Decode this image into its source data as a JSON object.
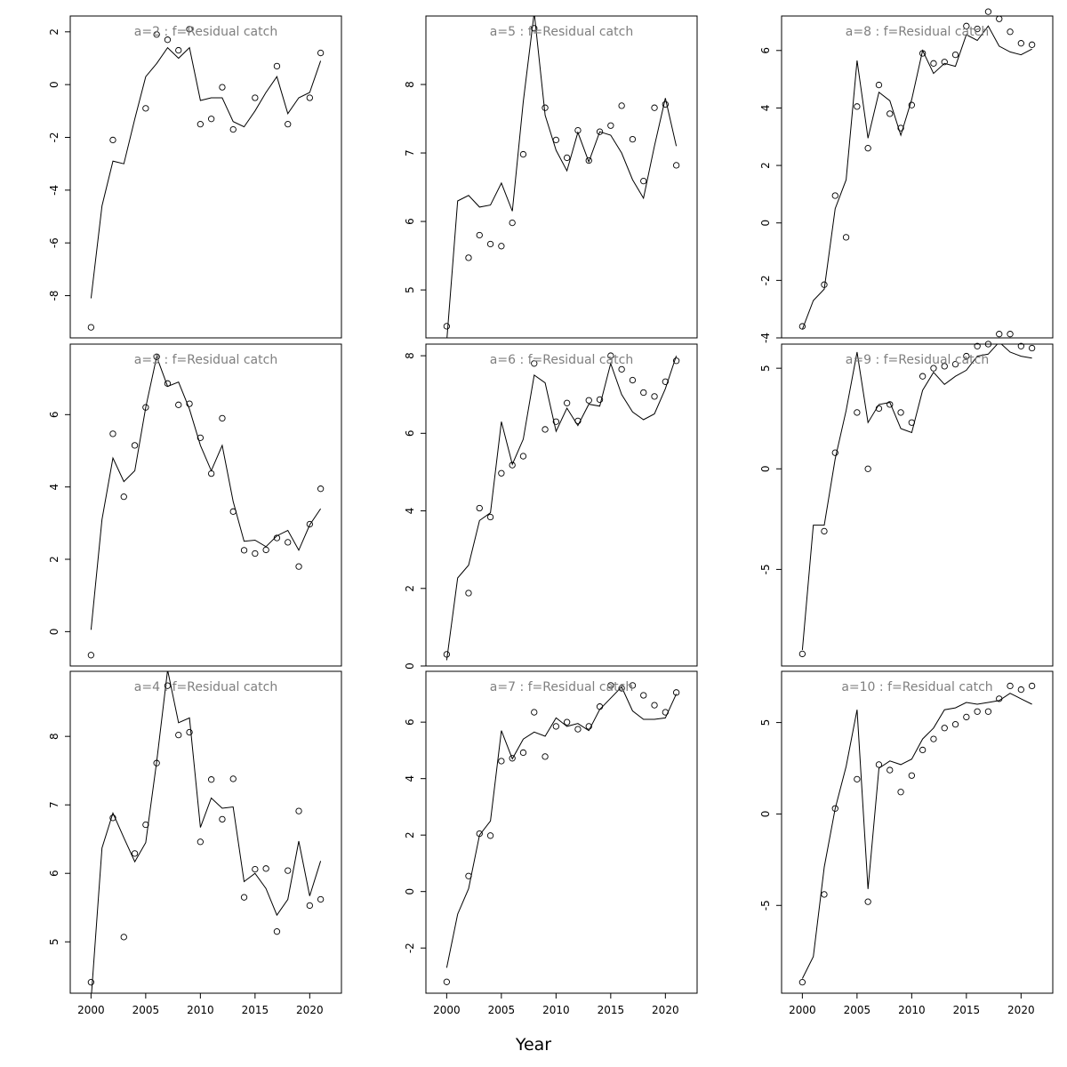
{
  "xlabel": "Year",
  "chart_data": [
    {
      "type": "line",
      "title": "a=2  :  f=Residual catch",
      "ylim": [
        -9.6,
        2.6
      ],
      "yticks": [
        -8,
        -6,
        -4,
        -2,
        0,
        2
      ],
      "ytick_labels": [
        "-8",
        "-6",
        "-4",
        "-2",
        "0",
        "2"
      ],
      "xticks": [
        2000,
        2005,
        2010,
        2015,
        2020
      ],
      "xtick_labels": [
        "2000",
        "2005",
        "2010",
        "2015",
        "2020"
      ],
      "show_xticks": false,
      "x": [
        2000,
        2001,
        2002,
        2003,
        2004,
        2005,
        2006,
        2007,
        2008,
        2009,
        2010,
        2011,
        2012,
        2013,
        2014,
        2015,
        2016,
        2017,
        2018,
        2019,
        2020,
        2021
      ],
      "observed": [
        -9.2,
        null,
        -2.1,
        null,
        null,
        -0.9,
        1.9,
        1.7,
        1.3,
        2.1,
        -1.5,
        -1.3,
        -0.1,
        -1.7,
        null,
        -0.5,
        null,
        0.7,
        -1.5,
        null,
        -0.5,
        1.2
      ],
      "fitted": [
        -8.1,
        -4.6,
        -2.9,
        -3.0,
        -1.3,
        0.3,
        0.8,
        1.4,
        1.0,
        1.4,
        -0.6,
        -0.5,
        -0.5,
        -1.4,
        -1.6,
        -1.0,
        -0.3,
        0.3,
        -1.1,
        -0.5,
        -0.3,
        0.9
      ]
    },
    {
      "type": "line",
      "title": "a=5  :  f=Residual catch",
      "ylim": [
        4.3,
        9.0
      ],
      "yticks": [
        5,
        6,
        7,
        8
      ],
      "ytick_labels": [
        "5",
        "6",
        "7",
        "8"
      ],
      "xticks": [
        2000,
        2005,
        2010,
        2015,
        2020
      ],
      "xtick_labels": [
        "2000",
        "2005",
        "2010",
        "2015",
        "2020"
      ],
      "show_xticks": false,
      "x": [
        2000,
        2001,
        2002,
        2003,
        2004,
        2005,
        2006,
        2007,
        2008,
        2009,
        2010,
        2011,
        2012,
        2013,
        2014,
        2015,
        2016,
        2017,
        2018,
        2019,
        2020,
        2021
      ],
      "observed": [
        4.47,
        null,
        5.47,
        5.8,
        5.67,
        5.64,
        5.98,
        6.98,
        8.82,
        7.66,
        7.19,
        6.93,
        7.33,
        6.89,
        7.31,
        7.4,
        7.69,
        7.2,
        6.59,
        7.66,
        7.71,
        6.82
      ],
      "fitted": [
        4.25,
        6.3,
        6.38,
        6.21,
        6.24,
        6.56,
        6.15,
        7.75,
        9.05,
        7.55,
        7.04,
        6.74,
        7.3,
        6.87,
        7.31,
        7.26,
        7.0,
        6.61,
        6.34,
        7.1,
        7.8,
        7.1
      ]
    },
    {
      "type": "line",
      "title": "a=8  :  f=Residual catch",
      "ylim": [
        -4.0,
        7.2
      ],
      "yticks": [
        -4,
        -2,
        0,
        2,
        4,
        6
      ],
      "ytick_labels": [
        "-4",
        "-2",
        "0",
        "2",
        "4",
        "6"
      ],
      "xticks": [
        2000,
        2005,
        2010,
        2015,
        2020
      ],
      "xtick_labels": [
        "2000",
        "2005",
        "2010",
        "2015",
        "2020"
      ],
      "show_xticks": false,
      "x": [
        2000,
        2001,
        2002,
        2003,
        2004,
        2005,
        2006,
        2007,
        2008,
        2009,
        2010,
        2011,
        2012,
        2013,
        2014,
        2015,
        2016,
        2017,
        2018,
        2019,
        2020,
        2021
      ],
      "observed": [
        -3.6,
        null,
        -2.15,
        0.95,
        -0.5,
        4.05,
        2.6,
        4.8,
        3.8,
        3.3,
        4.1,
        5.9,
        5.55,
        5.6,
        5.85,
        6.85,
        6.75,
        7.35,
        7.1,
        6.65,
        6.25,
        6.2
      ],
      "fitted": [
        -3.7,
        -2.7,
        -2.3,
        0.5,
        1.5,
        5.65,
        2.95,
        4.55,
        4.25,
        3.05,
        4.3,
        6.0,
        5.2,
        5.55,
        5.45,
        6.55,
        6.35,
        6.85,
        6.15,
        5.95,
        5.85,
        6.05
      ]
    },
    {
      "type": "line",
      "title": "a=3  :  f=Residual catch",
      "ylim": [
        -0.95,
        7.95
      ],
      "yticks": [
        0,
        2,
        4,
        6
      ],
      "ytick_labels": [
        "0",
        "2",
        "4",
        "6"
      ],
      "xticks": [
        2000,
        2005,
        2010,
        2015,
        2020
      ],
      "xtick_labels": [
        "2000",
        "2005",
        "2010",
        "2015",
        "2020"
      ],
      "show_xticks": false,
      "x": [
        2000,
        2001,
        2002,
        2003,
        2004,
        2005,
        2006,
        2007,
        2008,
        2009,
        2010,
        2011,
        2012,
        2013,
        2014,
        2015,
        2016,
        2017,
        2018,
        2019,
        2020,
        2021
      ],
      "observed": [
        -0.65,
        null,
        5.47,
        3.73,
        5.15,
        6.2,
        7.6,
        6.86,
        6.27,
        6.3,
        5.36,
        4.37,
        5.9,
        3.32,
        2.25,
        2.16,
        2.26,
        2.59,
        2.47,
        1.8,
        2.97,
        3.95
      ],
      "fitted": [
        0.05,
        3.1,
        4.8,
        4.15,
        4.45,
        6.2,
        7.6,
        6.78,
        6.9,
        6.15,
        5.15,
        4.45,
        5.15,
        3.6,
        2.5,
        2.53,
        2.35,
        2.65,
        2.8,
        2.25,
        2.95,
        3.4
      ]
    },
    {
      "type": "line",
      "title": "a=6  :  f=Residual catch",
      "ylim": [
        0,
        8.3
      ],
      "yticks": [
        0,
        2,
        4,
        6,
        8
      ],
      "ytick_labels": [
        "0",
        "2",
        "4",
        "6",
        "8"
      ],
      "xticks": [
        2000,
        2005,
        2010,
        2015,
        2020
      ],
      "xtick_labels": [
        "2000",
        "2005",
        "2010",
        "2015",
        "2020"
      ],
      "show_xticks": false,
      "x": [
        2000,
        2001,
        2002,
        2003,
        2004,
        2005,
        2006,
        2007,
        2008,
        2009,
        2010,
        2011,
        2012,
        2013,
        2014,
        2015,
        2016,
        2017,
        2018,
        2019,
        2020,
        2021
      ],
      "observed": [
        0.3,
        null,
        1.88,
        4.07,
        3.84,
        4.97,
        5.18,
        5.41,
        7.8,
        6.1,
        6.3,
        6.78,
        6.32,
        6.85,
        6.87,
        8.0,
        7.65,
        7.37,
        7.05,
        6.95,
        7.33,
        7.87
      ],
      "fitted": [
        0.15,
        2.27,
        2.6,
        3.75,
        3.95,
        6.3,
        5.2,
        5.85,
        7.5,
        7.3,
        6.05,
        6.65,
        6.2,
        6.75,
        6.7,
        7.8,
        7.0,
        6.55,
        6.35,
        6.5,
        7.15,
        8.0
      ]
    },
    {
      "type": "line",
      "title": "a=9  :  f=Residual catch",
      "ylim": [
        -9.8,
        6.2
      ],
      "yticks": [
        -5,
        0,
        5
      ],
      "ytick_labels": [
        "-5",
        "0",
        "5"
      ],
      "xticks": [
        2000,
        2005,
        2010,
        2015,
        2020
      ],
      "xtick_labels": [
        "2000",
        "2005",
        "2010",
        "2015",
        "2020"
      ],
      "show_xticks": false,
      "x": [
        2000,
        2001,
        2002,
        2003,
        2004,
        2005,
        2006,
        2007,
        2008,
        2009,
        2010,
        2011,
        2012,
        2013,
        2014,
        2015,
        2016,
        2017,
        2018,
        2019,
        2020,
        2021
      ],
      "observed": [
        -9.2,
        null,
        -3.1,
        0.8,
        null,
        2.8,
        0.0,
        3.0,
        3.2,
        2.8,
        2.3,
        4.6,
        5.0,
        5.1,
        5.2,
        5.6,
        6.1,
        6.2,
        6.7,
        6.7,
        6.1,
        6.0
      ],
      "fitted": [
        -9.0,
        -2.8,
        -2.8,
        0.5,
        2.9,
        5.8,
        2.3,
        3.2,
        3.3,
        2.0,
        1.8,
        3.9,
        4.8,
        4.2,
        4.6,
        4.9,
        5.6,
        5.7,
        6.3,
        5.8,
        5.6,
        5.5
      ]
    },
    {
      "type": "line",
      "title": "a=4  :  f=Residual catch",
      "ylim": [
        4.25,
        8.95
      ],
      "yticks": [
        5,
        6,
        7,
        8
      ],
      "ytick_labels": [
        "5",
        "6",
        "7",
        "8"
      ],
      "xticks": [
        2000,
        2005,
        2010,
        2015,
        2020
      ],
      "xtick_labels": [
        "2000",
        "2005",
        "2010",
        "2015",
        "2020"
      ],
      "show_xticks": true,
      "x": [
        2000,
        2001,
        2002,
        2003,
        2004,
        2005,
        2006,
        2007,
        2008,
        2009,
        2010,
        2011,
        2012,
        2013,
        2014,
        2015,
        2016,
        2017,
        2018,
        2019,
        2020,
        2021
      ],
      "observed": [
        4.41,
        null,
        6.81,
        5.07,
        6.29,
        6.71,
        7.61,
        8.74,
        8.02,
        8.06,
        6.46,
        7.37,
        6.79,
        7.38,
        5.65,
        6.06,
        6.07,
        5.15,
        6.04,
        6.91,
        5.53,
        5.62
      ],
      "fitted": [
        4.15,
        6.37,
        6.88,
        6.52,
        6.17,
        6.45,
        7.63,
        8.97,
        8.2,
        8.27,
        6.67,
        7.1,
        6.95,
        6.97,
        5.88,
        6.0,
        5.78,
        5.39,
        5.62,
        6.47,
        5.67,
        6.18
      ]
    },
    {
      "type": "line",
      "title": "a=7  :  f=Residual catch",
      "ylim": [
        -3.6,
        7.8
      ],
      "yticks": [
        -2,
        0,
        2,
        4,
        6
      ],
      "ytick_labels": [
        "-2",
        "0",
        "2",
        "4",
        "6"
      ],
      "xticks": [
        2000,
        2005,
        2010,
        2015,
        2020
      ],
      "xtick_labels": [
        "2000",
        "2005",
        "2010",
        "2015",
        "2020"
      ],
      "show_xticks": true,
      "x": [
        2000,
        2001,
        2002,
        2003,
        2004,
        2005,
        2006,
        2007,
        2008,
        2009,
        2010,
        2011,
        2012,
        2013,
        2014,
        2015,
        2016,
        2017,
        2018,
        2019,
        2020,
        2021
      ],
      "observed": [
        -3.2,
        null,
        0.55,
        2.05,
        1.98,
        4.62,
        4.72,
        4.92,
        6.35,
        4.78,
        5.85,
        6.0,
        5.75,
        5.85,
        6.55,
        7.3,
        7.2,
        7.3,
        6.95,
        6.6,
        6.35,
        7.05
      ],
      "fitted": [
        -2.7,
        -0.8,
        0.1,
        2.0,
        2.5,
        5.7,
        4.7,
        5.4,
        5.65,
        5.5,
        6.15,
        5.85,
        5.95,
        5.7,
        6.45,
        6.85,
        7.25,
        6.4,
        6.1,
        6.1,
        6.15,
        7.0
      ]
    },
    {
      "type": "line",
      "title": "a=10  :  f=Residual catch",
      "ylim": [
        -9.8,
        7.8
      ],
      "yticks": [
        -5,
        0,
        5
      ],
      "ytick_labels": [
        "-5",
        "0",
        "5"
      ],
      "xticks": [
        2000,
        2005,
        2010,
        2015,
        2020
      ],
      "xtick_labels": [
        "2000",
        "2005",
        "2010",
        "2015",
        "2020"
      ],
      "show_xticks": true,
      "x": [
        2000,
        2001,
        2002,
        2003,
        2004,
        2005,
        2006,
        2007,
        2008,
        2009,
        2010,
        2011,
        2012,
        2013,
        2014,
        2015,
        2016,
        2017,
        2018,
        2019,
        2020,
        2021
      ],
      "observed": [
        -9.2,
        null,
        -4.4,
        0.3,
        null,
        1.9,
        -4.8,
        2.7,
        2.4,
        1.2,
        2.1,
        3.5,
        4.1,
        4.7,
        4.9,
        5.3,
        5.6,
        5.6,
        6.3,
        7.0,
        6.8,
        7.0
      ],
      "fitted": [
        -9.0,
        -7.8,
        -2.9,
        0.3,
        2.6,
        5.7,
        -4.1,
        2.5,
        2.9,
        2.7,
        3.0,
        4.1,
        4.7,
        5.7,
        5.8,
        6.1,
        6.0,
        6.1,
        6.2,
        6.6,
        6.3,
        6.0
      ]
    }
  ]
}
